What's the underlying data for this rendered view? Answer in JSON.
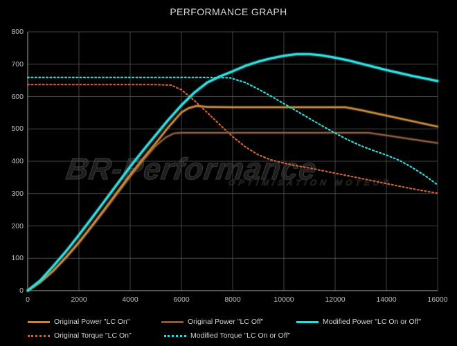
{
  "title": "PERFORMANCE GRAPH",
  "watermark": {
    "brand": "BR-Performance",
    "subtitle": "OPTIMISATION MOTEUR"
  },
  "colors": {
    "background": "#000000",
    "grid": "#454545",
    "axis": "#8a8a8a",
    "tick_text": "#bfbfbf",
    "title_text": "#d9d9d9",
    "power_lc_on": "#c0873b",
    "power_lc_off": "#8a5a38",
    "modified_cyan": "#2cdbdb",
    "torque_orange": "#cc6434"
  },
  "chart_data": {
    "type": "line",
    "title": "PERFORMANCE GRAPH",
    "xlabel": "",
    "ylabel": "",
    "xlim": [
      0,
      16000
    ],
    "ylim": [
      0,
      800
    ],
    "x_ticks": [
      0,
      2000,
      4000,
      6000,
      8000,
      10000,
      12000,
      14000,
      16000
    ],
    "y_ticks": [
      0,
      100,
      200,
      300,
      400,
      500,
      600,
      700,
      800
    ],
    "grid": true,
    "legend_position": "bottom",
    "series": [
      {
        "name": "Original Power \"LC On\"",
        "color": "#c0873b",
        "dash": false,
        "width": 2.4,
        "points": [
          [
            0,
            0
          ],
          [
            500,
            27
          ],
          [
            1000,
            62
          ],
          [
            1500,
            104
          ],
          [
            2000,
            150
          ],
          [
            2500,
            200
          ],
          [
            3000,
            252
          ],
          [
            3500,
            305
          ],
          [
            4000,
            358
          ],
          [
            4500,
            408
          ],
          [
            5000,
            456
          ],
          [
            5500,
            506
          ],
          [
            6000,
            551
          ],
          [
            6300,
            565
          ],
          [
            6600,
            571
          ],
          [
            7000,
            568
          ],
          [
            8000,
            567
          ],
          [
            9000,
            567
          ],
          [
            10000,
            567
          ],
          [
            11000,
            567
          ],
          [
            12000,
            567
          ],
          [
            12400,
            567
          ],
          [
            13000,
            558
          ],
          [
            14000,
            541
          ],
          [
            15000,
            524
          ],
          [
            16000,
            507
          ]
        ]
      },
      {
        "name": "Original Power \"LC Off\"",
        "color": "#8a5a38",
        "dash": false,
        "width": 2,
        "points": [
          [
            0,
            0
          ],
          [
            500,
            26
          ],
          [
            1000,
            60
          ],
          [
            1500,
            102
          ],
          [
            2000,
            147
          ],
          [
            2500,
            197
          ],
          [
            3000,
            248
          ],
          [
            3500,
            300
          ],
          [
            4000,
            352
          ],
          [
            4500,
            402
          ],
          [
            5000,
            448
          ],
          [
            5400,
            474
          ],
          [
            5700,
            486
          ],
          [
            6000,
            488
          ],
          [
            7000,
            488
          ],
          [
            8000,
            488
          ],
          [
            9000,
            488
          ],
          [
            10000,
            488
          ],
          [
            11000,
            488
          ],
          [
            12000,
            488
          ],
          [
            13300,
            488
          ],
          [
            14000,
            480
          ],
          [
            15000,
            468
          ],
          [
            16000,
            456
          ]
        ]
      },
      {
        "name": "Modified Power \"LC On or Off\"",
        "color": "#2cdbdb",
        "dash": false,
        "width": 3,
        "points": [
          [
            0,
            0
          ],
          [
            500,
            32
          ],
          [
            1000,
            76
          ],
          [
            1500,
            122
          ],
          [
            2000,
            172
          ],
          [
            2500,
            224
          ],
          [
            3000,
            277
          ],
          [
            3500,
            330
          ],
          [
            4000,
            383
          ],
          [
            4500,
            433
          ],
          [
            5000,
            481
          ],
          [
            5500,
            529
          ],
          [
            6000,
            573
          ],
          [
            6500,
            612
          ],
          [
            7000,
            643
          ],
          [
            7500,
            662
          ],
          [
            8000,
            678
          ],
          [
            8500,
            695
          ],
          [
            9000,
            708
          ],
          [
            9500,
            718
          ],
          [
            10000,
            726
          ],
          [
            10500,
            731
          ],
          [
            11000,
            731
          ],
          [
            11500,
            727
          ],
          [
            12000,
            720
          ],
          [
            12500,
            712
          ],
          [
            13000,
            702
          ],
          [
            13500,
            692
          ],
          [
            14000,
            682
          ],
          [
            14500,
            673
          ],
          [
            15000,
            664
          ],
          [
            15500,
            656
          ],
          [
            16000,
            648
          ]
        ]
      },
      {
        "name": "Original Torque \"LC On\"",
        "color": "#cc6434",
        "dash": true,
        "width": 2.2,
        "points": [
          [
            0,
            637
          ],
          [
            1000,
            637
          ],
          [
            2000,
            637
          ],
          [
            3000,
            637
          ],
          [
            4000,
            637
          ],
          [
            5000,
            637
          ],
          [
            5600,
            635
          ],
          [
            6000,
            621
          ],
          [
            6500,
            588
          ],
          [
            7000,
            551
          ],
          [
            7500,
            513
          ],
          [
            8000,
            476
          ],
          [
            8500,
            444
          ],
          [
            9000,
            420
          ],
          [
            9500,
            404
          ],
          [
            10000,
            394
          ],
          [
            10500,
            386
          ],
          [
            11000,
            379
          ],
          [
            11500,
            371
          ],
          [
            12000,
            363
          ],
          [
            12500,
            355
          ],
          [
            13000,
            347
          ],
          [
            13500,
            339
          ],
          [
            14000,
            331
          ],
          [
            14500,
            323
          ],
          [
            15000,
            315
          ],
          [
            15500,
            308
          ],
          [
            16000,
            301
          ]
        ]
      },
      {
        "name": "Modified Torque \"LC On or Off\"",
        "color": "#2cdbdb",
        "dash": true,
        "width": 2.2,
        "points": [
          [
            0,
            659
          ],
          [
            1000,
            659
          ],
          [
            2000,
            659
          ],
          [
            3000,
            659
          ],
          [
            4000,
            659
          ],
          [
            5000,
            659
          ],
          [
            6000,
            659
          ],
          [
            7000,
            659
          ],
          [
            7900,
            658
          ],
          [
            8500,
            643
          ],
          [
            9000,
            623
          ],
          [
            9500,
            601
          ],
          [
            10000,
            578
          ],
          [
            10500,
            555
          ],
          [
            11000,
            532
          ],
          [
            11500,
            509
          ],
          [
            12000,
            487
          ],
          [
            12500,
            466
          ],
          [
            13000,
            448
          ],
          [
            13500,
            433
          ],
          [
            14000,
            419
          ],
          [
            14500,
            403
          ],
          [
            15000,
            381
          ],
          [
            15500,
            356
          ],
          [
            16000,
            327
          ]
        ]
      }
    ]
  }
}
